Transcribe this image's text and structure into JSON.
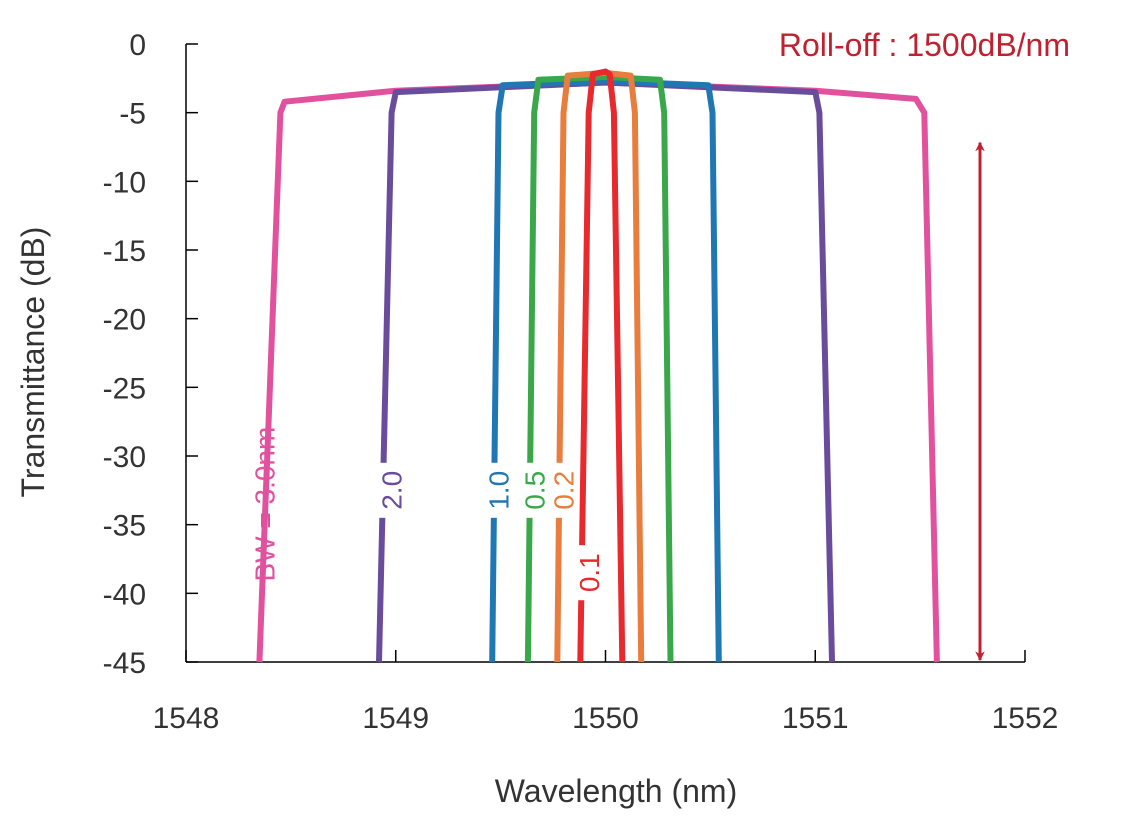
{
  "chart_data": {
    "type": "line",
    "title": "",
    "xlabel": "Wavelength (nm)",
    "ylabel": "Transmittance (dB)",
    "xlim": [
      1548,
      1552
    ],
    "ylim": [
      -45,
      0
    ],
    "xticks": [
      "1548",
      "1549",
      "1550",
      "1551",
      "1552"
    ],
    "yticks": [
      "0",
      "-5",
      "-10",
      "-15",
      "-20",
      "-25",
      "-30",
      "-35",
      "-40",
      "-45"
    ],
    "grid": false,
    "annotation": "Roll-off : 1500dB/nm",
    "annotation_color": "#c0202f",
    "arrow_range": [
      -45,
      -5
    ],
    "series": [
      {
        "label": "BW = 3.0nm",
        "color": "#e2519d",
        "x": [
          1548.35,
          1548.45,
          1548.47,
          1549.0,
          1550.0,
          1551.0,
          1551.48,
          1551.52,
          1551.58
        ],
        "y": [
          -45,
          -5,
          -4.2,
          -3.4,
          -2.8,
          -3.4,
          -4.0,
          -5,
          -45
        ]
      },
      {
        "label": "2.0",
        "color": "#6a4c9c",
        "x": [
          1548.92,
          1548.98,
          1549.0,
          1550.0,
          1551.0,
          1551.02,
          1551.08
        ],
        "y": [
          -45,
          -5,
          -3.5,
          -2.8,
          -3.5,
          -5,
          -45
        ]
      },
      {
        "label": "1.0",
        "color": "#1f77b4",
        "x": [
          1549.46,
          1549.49,
          1549.51,
          1550.0,
          1550.49,
          1550.51,
          1550.54
        ],
        "y": [
          -45,
          -5,
          -3.0,
          -2.7,
          -3.0,
          -5,
          -45
        ]
      },
      {
        "label": "0.5",
        "color": "#3aa84a",
        "x": [
          1549.63,
          1549.66,
          1549.68,
          1550.0,
          1550.26,
          1550.28,
          1550.31
        ],
        "y": [
          -45,
          -5,
          -2.6,
          -2.4,
          -2.6,
          -5,
          -45
        ]
      },
      {
        "label": "0.2",
        "color": "#e87d3e",
        "x": [
          1549.77,
          1549.8,
          1549.82,
          1550.0,
          1550.12,
          1550.14,
          1550.17
        ],
        "y": [
          -45,
          -5,
          -2.3,
          -2.1,
          -2.3,
          -5,
          -45
        ]
      },
      {
        "label": "0.1",
        "color": "#e8292e",
        "x": [
          1549.88,
          1549.92,
          1549.94,
          1550.0,
          1550.02,
          1550.04,
          1550.08
        ],
        "y": [
          -45,
          -5,
          -2.2,
          -2.0,
          -2.2,
          -5,
          -45
        ]
      }
    ]
  }
}
